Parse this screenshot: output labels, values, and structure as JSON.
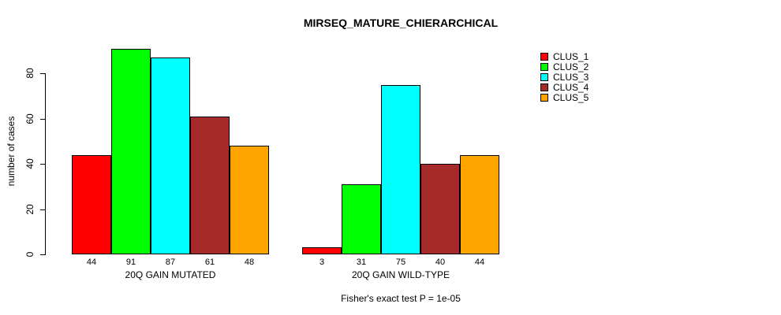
{
  "chart_data": {
    "type": "bar",
    "title": "MIRSEQ_MATURE_CHIERARCHICAL",
    "xlabel": "",
    "ylabel": "number of cases",
    "yticks": [
      0,
      20,
      40,
      60,
      80
    ],
    "ylim": [
      0,
      95
    ],
    "grid": false,
    "legend_position": "right",
    "legend_entries": [
      "CLUS_1",
      "CLUS_2",
      "CLUS_3",
      "CLUS_4",
      "CLUS_5"
    ],
    "series_colors": [
      "#ff0000",
      "#00ff00",
      "#00ffff",
      "#a52a2a",
      "#ffa500"
    ],
    "groups": [
      {
        "label": "20Q GAIN MUTATED",
        "values": [
          44,
          91,
          87,
          61,
          48
        ]
      },
      {
        "label": "20Q GAIN WILD-TYPE",
        "values": [
          3,
          31,
          75,
          40,
          44
        ]
      }
    ],
    "annotation": "Fisher's exact test P = 1e-05"
  }
}
